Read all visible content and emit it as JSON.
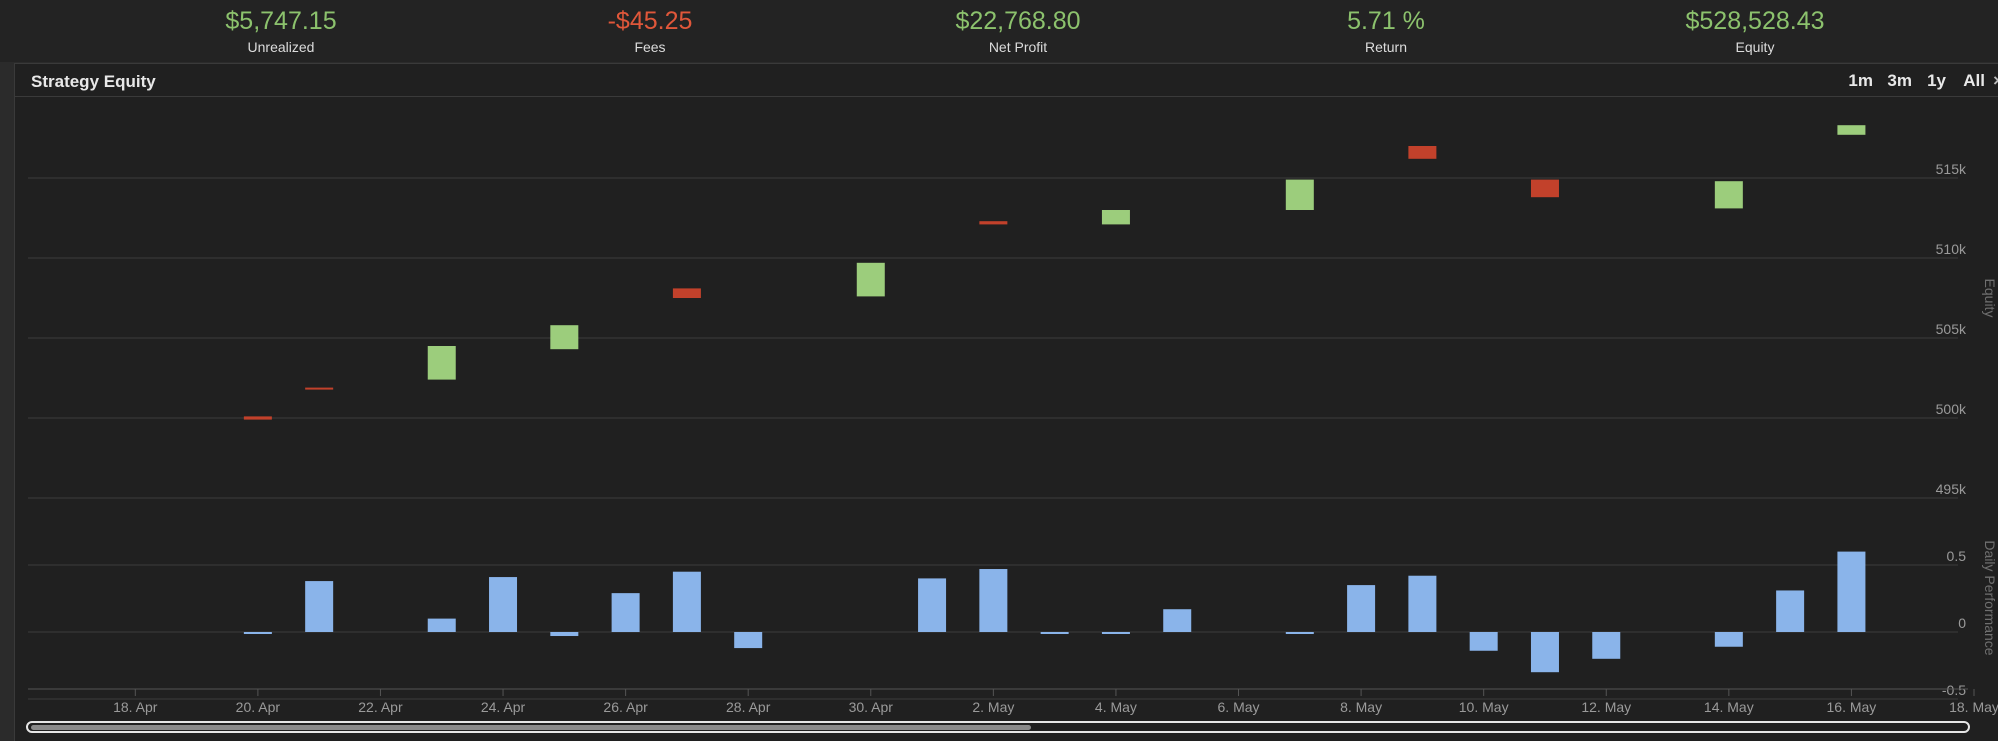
{
  "stats": [
    {
      "value": "$5,747.15",
      "label": "Unrealized",
      "color": "#8cc26d"
    },
    {
      "value": "-$45.25",
      "label": "Fees",
      "color": "#e0573a"
    },
    {
      "value": "$22,768.80",
      "label": "Net Profit",
      "color": "#8cc26d"
    },
    {
      "value": "5.71 %",
      "label": "Return",
      "color": "#8cc26d"
    },
    {
      "value": "$528,528.43",
      "label": "Equity",
      "color": "#8cc26d"
    }
  ],
  "panel": {
    "title": "Strategy Equity"
  },
  "range_buttons": [
    "1m",
    "3m",
    "1y",
    "All"
  ],
  "colors": {
    "up": "#9ccd7c",
    "down": "#c2412b",
    "bar": "#8ab4ea",
    "grid": "#3d3d3d",
    "axis_text": "#9a9a9a"
  },
  "chart_data": [
    {
      "type": "candlestick",
      "ylabel": "Equity",
      "ylim": [
        492000,
        520000
      ],
      "yticks": [
        "495k",
        "500k",
        "505k",
        "510k",
        "515k"
      ],
      "ytick_values": [
        495000,
        500000,
        505000,
        510000,
        515000
      ],
      "x_range": [
        "2024-04-17",
        "2024-05-18"
      ],
      "xticks": [
        "18. Apr",
        "20. Apr",
        "22. Apr",
        "24. Apr",
        "26. Apr",
        "28. Apr",
        "30. Apr",
        "2. May",
        "4. May",
        "6. May",
        "8. May",
        "10. May",
        "12. May",
        "14. May",
        "16. May",
        "18. May"
      ],
      "candles": [
        {
          "date": "2024-04-20",
          "open": 500100,
          "close": 499900
        },
        {
          "date": "2024-04-21",
          "open": 501900,
          "close": 501800
        },
        {
          "date": "2024-04-23",
          "open": 502400,
          "close": 504500
        },
        {
          "date": "2024-04-25",
          "open": 504300,
          "close": 505800
        },
        {
          "date": "2024-04-27",
          "open": 508100,
          "close": 507500
        },
        {
          "date": "2024-04-30",
          "open": 507600,
          "close": 509700
        },
        {
          "date": "2024-05-02",
          "open": 512300,
          "close": 512100
        },
        {
          "date": "2024-05-04",
          "open": 512100,
          "close": 513000
        },
        {
          "date": "2024-05-07",
          "open": 513000,
          "close": 514900
        },
        {
          "date": "2024-05-09",
          "open": 517000,
          "close": 516200
        },
        {
          "date": "2024-05-11",
          "open": 514900,
          "close": 513800
        },
        {
          "date": "2024-05-14",
          "open": 513100,
          "close": 514800
        },
        {
          "date": "2024-05-16",
          "open": 517700,
          "close": 518300
        }
      ]
    },
    {
      "type": "bar",
      "ylabel": "Daily Performance",
      "ylim": [
        -0.5,
        0.5
      ],
      "yticks": [
        "-0.5",
        "0",
        "0.5"
      ],
      "ytick_values": [
        -0.5,
        0,
        0.5
      ],
      "series": [
        {
          "values": [
            {
              "date": "2024-04-20",
              "value": -0.01
            },
            {
              "date": "2024-04-21",
              "value": 0.38
            },
            {
              "date": "2024-04-23",
              "value": 0.1
            },
            {
              "date": "2024-04-24",
              "value": 0.41
            },
            {
              "date": "2024-04-25",
              "value": -0.03
            },
            {
              "date": "2024-04-26",
              "value": 0.29
            },
            {
              "date": "2024-04-27",
              "value": 0.45
            },
            {
              "date": "2024-04-28",
              "value": -0.12
            },
            {
              "date": "2024-05-01",
              "value": 0.4
            },
            {
              "date": "2024-05-02",
              "value": 0.47
            },
            {
              "date": "2024-05-03",
              "value": -0.01
            },
            {
              "date": "2024-05-04",
              "value": -0.01
            },
            {
              "date": "2024-05-05",
              "value": 0.17
            },
            {
              "date": "2024-05-07",
              "value": -0.01
            },
            {
              "date": "2024-05-08",
              "value": 0.35
            },
            {
              "date": "2024-05-09",
              "value": 0.42
            },
            {
              "date": "2024-05-10",
              "value": -0.14
            },
            {
              "date": "2024-05-11",
              "value": -0.3
            },
            {
              "date": "2024-05-12",
              "value": -0.2
            },
            {
              "date": "2024-05-14",
              "value": -0.11
            },
            {
              "date": "2024-05-15",
              "value": 0.31
            },
            {
              "date": "2024-05-16",
              "value": 0.6
            }
          ]
        }
      ]
    }
  ]
}
